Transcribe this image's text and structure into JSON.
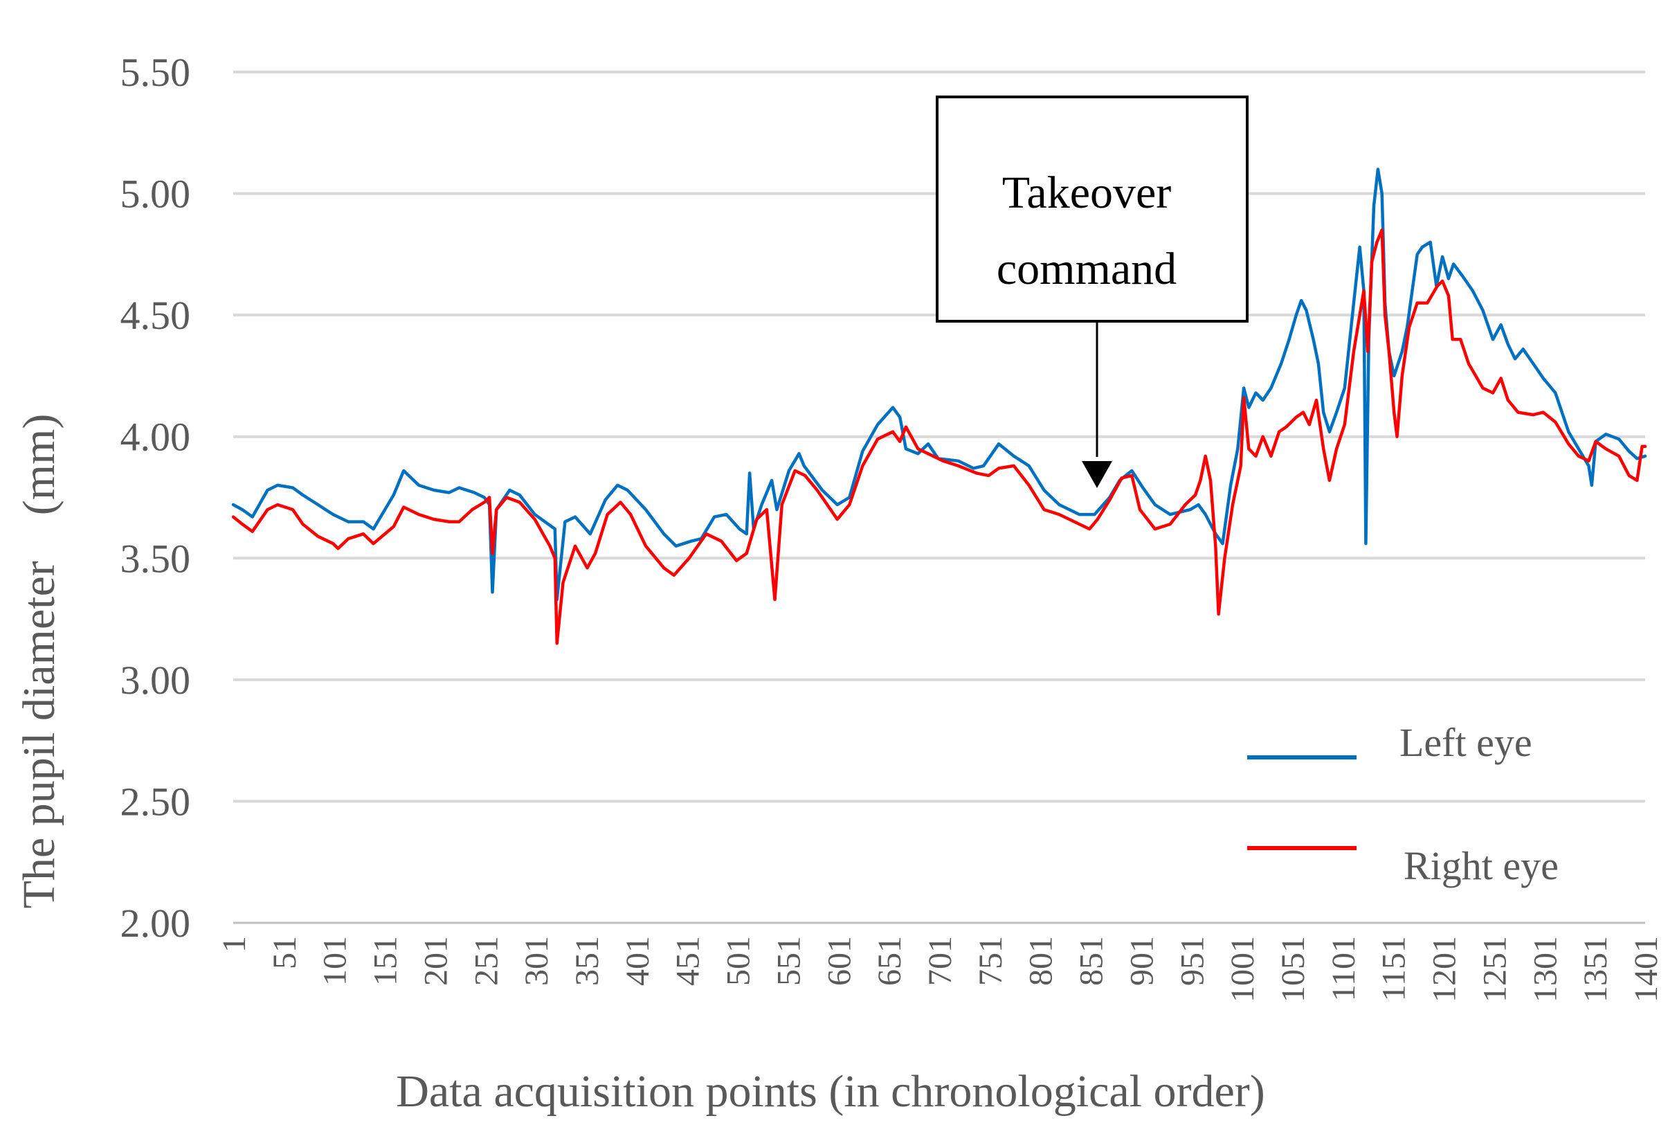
{
  "chart_data": {
    "type": "line",
    "title": "",
    "xlabel": "Data acquisition points (in chronological order)",
    "ylabel": "The pupil diameter　(mm)",
    "ylim": [
      2.0,
      5.5
    ],
    "xlim": [
      1,
      1401
    ],
    "grid": "horizontal",
    "legend_position": "bottom-right",
    "yticks": [
      "2.00",
      "2.50",
      "3.00",
      "3.50",
      "4.00",
      "4.50",
      "5.00",
      "5.50"
    ],
    "xticks": [
      "1",
      "51",
      "101",
      "151",
      "201",
      "251",
      "301",
      "351",
      "401",
      "451",
      "501",
      "551",
      "601",
      "651",
      "701",
      "751",
      "801",
      "851",
      "901",
      "951",
      "1001",
      "1051",
      "1101",
      "1151",
      "1201",
      "1251",
      "1301",
      "1351",
      "1401"
    ],
    "annotation": {
      "lines": [
        "Takeover",
        "command"
      ],
      "x": 860,
      "y": 3.72
    },
    "series": [
      {
        "name": "Left eye",
        "color": "#0070C0",
        "points": [
          [
            1,
            3.72
          ],
          [
            10,
            3.7
          ],
          [
            20,
            3.67
          ],
          [
            35,
            3.78
          ],
          [
            45,
            3.8
          ],
          [
            60,
            3.79
          ],
          [
            70,
            3.76
          ],
          [
            85,
            3.72
          ],
          [
            100,
            3.68
          ],
          [
            115,
            3.65
          ],
          [
            130,
            3.65
          ],
          [
            140,
            3.62
          ],
          [
            160,
            3.76
          ],
          [
            170,
            3.86
          ],
          [
            175,
            3.84
          ],
          [
            185,
            3.8
          ],
          [
            200,
            3.78
          ],
          [
            215,
            3.77
          ],
          [
            225,
            3.79
          ],
          [
            240,
            3.77
          ],
          [
            250,
            3.75
          ],
          [
            255,
            3.72
          ],
          [
            258,
            3.36
          ],
          [
            262,
            3.7
          ],
          [
            275,
            3.78
          ],
          [
            285,
            3.76
          ],
          [
            300,
            3.68
          ],
          [
            320,
            3.62
          ],
          [
            322,
            3.33
          ],
          [
            330,
            3.65
          ],
          [
            340,
            3.67
          ],
          [
            355,
            3.6
          ],
          [
            370,
            3.74
          ],
          [
            382,
            3.8
          ],
          [
            392,
            3.78
          ],
          [
            410,
            3.7
          ],
          [
            428,
            3.6
          ],
          [
            440,
            3.55
          ],
          [
            455,
            3.57
          ],
          [
            465,
            3.58
          ],
          [
            478,
            3.67
          ],
          [
            490,
            3.68
          ],
          [
            503,
            3.62
          ],
          [
            510,
            3.6
          ],
          [
            513,
            3.85
          ],
          [
            517,
            3.62
          ],
          [
            525,
            3.72
          ],
          [
            535,
            3.82
          ],
          [
            540,
            3.7
          ],
          [
            552,
            3.86
          ],
          [
            562,
            3.93
          ],
          [
            567,
            3.88
          ],
          [
            585,
            3.78
          ],
          [
            600,
            3.72
          ],
          [
            612,
            3.75
          ],
          [
            625,
            3.94
          ],
          [
            640,
            4.05
          ],
          [
            655,
            4.12
          ],
          [
            662,
            4.08
          ],
          [
            668,
            3.95
          ],
          [
            680,
            3.93
          ],
          [
            690,
            3.97
          ],
          [
            700,
            3.91
          ],
          [
            720,
            3.9
          ],
          [
            735,
            3.87
          ],
          [
            745,
            3.88
          ],
          [
            755,
            3.94
          ],
          [
            760,
            3.97
          ],
          [
            775,
            3.92
          ],
          [
            790,
            3.88
          ],
          [
            805,
            3.78
          ],
          [
            820,
            3.72
          ],
          [
            840,
            3.68
          ],
          [
            855,
            3.68
          ],
          [
            870,
            3.75
          ],
          [
            880,
            3.82
          ],
          [
            892,
            3.86
          ],
          [
            903,
            3.79
          ],
          [
            915,
            3.72
          ],
          [
            930,
            3.68
          ],
          [
            950,
            3.7
          ],
          [
            958,
            3.72
          ],
          [
            965,
            3.68
          ],
          [
            975,
            3.6
          ],
          [
            982,
            3.56
          ],
          [
            990,
            3.8
          ],
          [
            997,
            3.95
          ],
          [
            1003,
            4.2
          ],
          [
            1008,
            4.12
          ],
          [
            1015,
            4.18
          ],
          [
            1022,
            4.15
          ],
          [
            1030,
            4.2
          ],
          [
            1040,
            4.3
          ],
          [
            1048,
            4.4
          ],
          [
            1055,
            4.5
          ],
          [
            1060,
            4.56
          ],
          [
            1065,
            4.52
          ],
          [
            1072,
            4.4
          ],
          [
            1077,
            4.3
          ],
          [
            1082,
            4.1
          ],
          [
            1088,
            4.02
          ],
          [
            1095,
            4.1
          ],
          [
            1103,
            4.2
          ],
          [
            1112,
            4.55
          ],
          [
            1118,
            4.78
          ],
          [
            1122,
            4.6
          ],
          [
            1124,
            3.56
          ],
          [
            1127,
            4.4
          ],
          [
            1132,
            4.95
          ],
          [
            1136,
            5.1
          ],
          [
            1140,
            5.0
          ],
          [
            1143,
            4.55
          ],
          [
            1147,
            4.35
          ],
          [
            1152,
            4.25
          ],
          [
            1160,
            4.35
          ],
          [
            1165,
            4.45
          ],
          [
            1170,
            4.6
          ],
          [
            1175,
            4.75
          ],
          [
            1180,
            4.78
          ],
          [
            1188,
            4.8
          ],
          [
            1194,
            4.62
          ],
          [
            1200,
            4.74
          ],
          [
            1206,
            4.65
          ],
          [
            1211,
            4.71
          ],
          [
            1220,
            4.66
          ],
          [
            1230,
            4.6
          ],
          [
            1240,
            4.52
          ],
          [
            1250,
            4.4
          ],
          [
            1258,
            4.46
          ],
          [
            1265,
            4.38
          ],
          [
            1272,
            4.32
          ],
          [
            1280,
            4.36
          ],
          [
            1290,
            4.3
          ],
          [
            1300,
            4.24
          ],
          [
            1312,
            4.18
          ],
          [
            1325,
            4.02
          ],
          [
            1335,
            3.95
          ],
          [
            1345,
            3.88
          ],
          [
            1348,
            3.8
          ],
          [
            1352,
            3.98
          ],
          [
            1362,
            4.01
          ],
          [
            1375,
            3.99
          ],
          [
            1385,
            3.94
          ],
          [
            1393,
            3.91
          ],
          [
            1401,
            3.92
          ]
        ]
      },
      {
        "name": "Right eye",
        "color": "#FF0000",
        "points": [
          [
            1,
            3.67
          ],
          [
            10,
            3.64
          ],
          [
            20,
            3.61
          ],
          [
            35,
            3.7
          ],
          [
            45,
            3.72
          ],
          [
            60,
            3.7
          ],
          [
            70,
            3.64
          ],
          [
            85,
            3.59
          ],
          [
            100,
            3.56
          ],
          [
            105,
            3.54
          ],
          [
            115,
            3.58
          ],
          [
            130,
            3.6
          ],
          [
            140,
            3.56
          ],
          [
            160,
            3.63
          ],
          [
            170,
            3.71
          ],
          [
            185,
            3.68
          ],
          [
            200,
            3.66
          ],
          [
            215,
            3.65
          ],
          [
            225,
            3.65
          ],
          [
            238,
            3.7
          ],
          [
            250,
            3.73
          ],
          [
            255,
            3.75
          ],
          [
            258,
            3.52
          ],
          [
            262,
            3.7
          ],
          [
            272,
            3.75
          ],
          [
            285,
            3.73
          ],
          [
            300,
            3.66
          ],
          [
            315,
            3.55
          ],
          [
            320,
            3.5
          ],
          [
            322,
            3.15
          ],
          [
            328,
            3.4
          ],
          [
            340,
            3.55
          ],
          [
            352,
            3.46
          ],
          [
            360,
            3.52
          ],
          [
            372,
            3.68
          ],
          [
            385,
            3.73
          ],
          [
            395,
            3.68
          ],
          [
            410,
            3.55
          ],
          [
            428,
            3.46
          ],
          [
            438,
            3.43
          ],
          [
            453,
            3.5
          ],
          [
            470,
            3.6
          ],
          [
            485,
            3.57
          ],
          [
            500,
            3.49
          ],
          [
            510,
            3.52
          ],
          [
            520,
            3.66
          ],
          [
            530,
            3.7
          ],
          [
            538,
            3.33
          ],
          [
            545,
            3.72
          ],
          [
            558,
            3.86
          ],
          [
            568,
            3.84
          ],
          [
            580,
            3.78
          ],
          [
            600,
            3.66
          ],
          [
            612,
            3.72
          ],
          [
            625,
            3.88
          ],
          [
            640,
            3.99
          ],
          [
            655,
            4.02
          ],
          [
            662,
            3.98
          ],
          [
            668,
            4.04
          ],
          [
            680,
            3.95
          ],
          [
            695,
            3.92
          ],
          [
            705,
            3.9
          ],
          [
            720,
            3.88
          ],
          [
            738,
            3.85
          ],
          [
            750,
            3.84
          ],
          [
            760,
            3.87
          ],
          [
            775,
            3.88
          ],
          [
            790,
            3.8
          ],
          [
            805,
            3.7
          ],
          [
            820,
            3.68
          ],
          [
            835,
            3.65
          ],
          [
            850,
            3.62
          ],
          [
            858,
            3.66
          ],
          [
            870,
            3.74
          ],
          [
            882,
            3.83
          ],
          [
            892,
            3.84
          ],
          [
            900,
            3.7
          ],
          [
            915,
            3.62
          ],
          [
            930,
            3.64
          ],
          [
            945,
            3.72
          ],
          [
            955,
            3.76
          ],
          [
            960,
            3.82
          ],
          [
            965,
            3.92
          ],
          [
            970,
            3.82
          ],
          [
            975,
            3.55
          ],
          [
            978,
            3.27
          ],
          [
            984,
            3.5
          ],
          [
            992,
            3.72
          ],
          [
            1000,
            3.88
          ],
          [
            1003,
            4.16
          ],
          [
            1008,
            3.95
          ],
          [
            1015,
            3.92
          ],
          [
            1022,
            4.0
          ],
          [
            1030,
            3.92
          ],
          [
            1038,
            4.02
          ],
          [
            1045,
            4.04
          ],
          [
            1055,
            4.08
          ],
          [
            1062,
            4.1
          ],
          [
            1068,
            4.05
          ],
          [
            1075,
            4.15
          ],
          [
            1082,
            3.95
          ],
          [
            1088,
            3.82
          ],
          [
            1095,
            3.95
          ],
          [
            1103,
            4.05
          ],
          [
            1112,
            4.35
          ],
          [
            1118,
            4.5
          ],
          [
            1122,
            4.6
          ],
          [
            1126,
            4.35
          ],
          [
            1130,
            4.72
          ],
          [
            1135,
            4.8
          ],
          [
            1140,
            4.85
          ],
          [
            1143,
            4.5
          ],
          [
            1147,
            4.35
          ],
          [
            1152,
            4.1
          ],
          [
            1155,
            4.0
          ],
          [
            1160,
            4.25
          ],
          [
            1167,
            4.45
          ],
          [
            1175,
            4.55
          ],
          [
            1185,
            4.55
          ],
          [
            1195,
            4.62
          ],
          [
            1200,
            4.64
          ],
          [
            1206,
            4.58
          ],
          [
            1210,
            4.4
          ],
          [
            1218,
            4.4
          ],
          [
            1226,
            4.3
          ],
          [
            1240,
            4.2
          ],
          [
            1250,
            4.18
          ],
          [
            1258,
            4.24
          ],
          [
            1265,
            4.15
          ],
          [
            1275,
            4.1
          ],
          [
            1290,
            4.09
          ],
          [
            1300,
            4.1
          ],
          [
            1312,
            4.06
          ],
          [
            1325,
            3.97
          ],
          [
            1335,
            3.92
          ],
          [
            1345,
            3.9
          ],
          [
            1352,
            3.98
          ],
          [
            1362,
            3.95
          ],
          [
            1375,
            3.92
          ],
          [
            1385,
            3.84
          ],
          [
            1393,
            3.82
          ],
          [
            1398,
            3.96
          ],
          [
            1401,
            3.96
          ]
        ]
      }
    ]
  }
}
